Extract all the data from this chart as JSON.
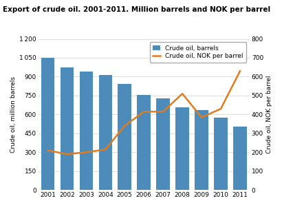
{
  "title": "Export of crude oil. 2001-2011. Million barrels and NOK per barrel",
  "years": [
    2001,
    2002,
    2003,
    2004,
    2005,
    2006,
    2007,
    2008,
    2009,
    2010,
    2011
  ],
  "barrels": [
    1050,
    975,
    940,
    915,
    840,
    755,
    730,
    655,
    635,
    575,
    505
  ],
  "nok_per_barrel": [
    210,
    190,
    200,
    215,
    340,
    415,
    415,
    510,
    385,
    430,
    630
  ],
  "bar_color": "#4d8cba",
  "line_color": "#e07b20",
  "left_ylabel": "Crude oil, million barrels",
  "right_ylabel": "Crude oil, NOK per barrel",
  "left_ylim": [
    0,
    1200
  ],
  "right_ylim": [
    0,
    800
  ],
  "left_yticks": [
    0,
    150,
    300,
    450,
    600,
    750,
    900,
    1050,
    1200
  ],
  "right_yticks": [
    0,
    100,
    200,
    300,
    400,
    500,
    600,
    700,
    800
  ],
  "legend_labels": [
    "Crude oil, barrels",
    "Crude oil, NOK per barrel"
  ],
  "background_color": "#ffffff",
  "grid_color": "#d0d0d0"
}
